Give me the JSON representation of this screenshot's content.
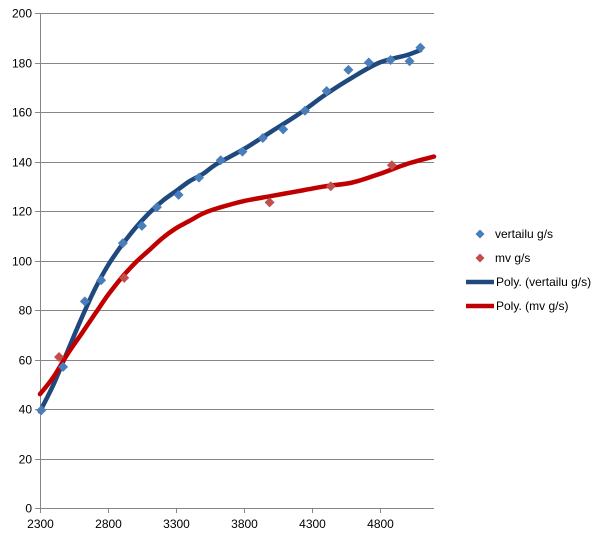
{
  "chart_data": {
    "type": "scatter",
    "title": "",
    "xlabel": "",
    "ylabel": "",
    "xlim": [
      2300,
      5200
    ],
    "ylim": [
      0,
      200
    ],
    "grid": true,
    "legend_position": "right",
    "x_ticks": [
      "2300",
      "2800",
      "3300",
      "3800",
      "4300",
      "4800"
    ],
    "y_ticks": [
      "0",
      "20",
      "40",
      "60",
      "80",
      "100",
      "120",
      "140",
      "160",
      "180",
      "200"
    ],
    "series": [
      {
        "name": "vertailu g/s",
        "kind": "scatter",
        "marker": "diamond",
        "color": "#4a7ebb",
        "points": [
          [
            2310,
            39.5
          ],
          [
            2470,
            57
          ],
          [
            2630,
            83.5
          ],
          [
            2750,
            92
          ],
          [
            2910,
            107
          ],
          [
            3050,
            114
          ],
          [
            3160,
            121.5
          ],
          [
            3320,
            126.5
          ],
          [
            3470,
            133.5
          ],
          [
            3630,
            140.5
          ],
          [
            3790,
            144
          ],
          [
            3940,
            149.5
          ],
          [
            4090,
            153
          ],
          [
            4250,
            160.5
          ],
          [
            4410,
            168.5
          ],
          [
            4570,
            177
          ],
          [
            4720,
            180
          ],
          [
            4880,
            181
          ],
          [
            5020,
            180.5
          ],
          [
            5100,
            186
          ]
        ]
      },
      {
        "name": "mv g/s",
        "kind": "scatter",
        "marker": "diamond",
        "color": "#c0504d",
        "points": [
          [
            2440,
            61
          ],
          [
            2920,
            93
          ],
          [
            3990,
            123.5
          ],
          [
            4440,
            130
          ],
          [
            4890,
            138.5
          ]
        ]
      },
      {
        "name": "Poly. (vertailu g/s)",
        "kind": "line",
        "color": "#1f497d",
        "points": [
          [
            2300,
            39
          ],
          [
            2400,
            50
          ],
          [
            2500,
            63
          ],
          [
            2600,
            76
          ],
          [
            2700,
            88
          ],
          [
            2800,
            98
          ],
          [
            2900,
            106
          ],
          [
            3000,
            113
          ],
          [
            3100,
            119
          ],
          [
            3200,
            124
          ],
          [
            3300,
            128
          ],
          [
            3400,
            132
          ],
          [
            3500,
            135
          ],
          [
            3600,
            139
          ],
          [
            3800,
            145
          ],
          [
            4000,
            152
          ],
          [
            4200,
            159
          ],
          [
            4400,
            167
          ],
          [
            4600,
            174
          ],
          [
            4800,
            180
          ],
          [
            5000,
            183
          ],
          [
            5100,
            185
          ]
        ]
      },
      {
        "name": "Poly. (mv g/s)",
        "kind": "line",
        "color": "#c00000",
        "points": [
          [
            2300,
            46
          ],
          [
            2400,
            53
          ],
          [
            2500,
            62
          ],
          [
            2600,
            70
          ],
          [
            2700,
            78
          ],
          [
            2800,
            86
          ],
          [
            2900,
            93
          ],
          [
            3000,
            99
          ],
          [
            3100,
            104
          ],
          [
            3200,
            109
          ],
          [
            3300,
            113
          ],
          [
            3400,
            116
          ],
          [
            3500,
            119
          ],
          [
            3600,
            121
          ],
          [
            3800,
            124
          ],
          [
            4000,
            126
          ],
          [
            4200,
            128
          ],
          [
            4400,
            130
          ],
          [
            4600,
            131.5
          ],
          [
            4800,
            135
          ],
          [
            5000,
            139
          ],
          [
            5200,
            142
          ]
        ]
      }
    ]
  }
}
